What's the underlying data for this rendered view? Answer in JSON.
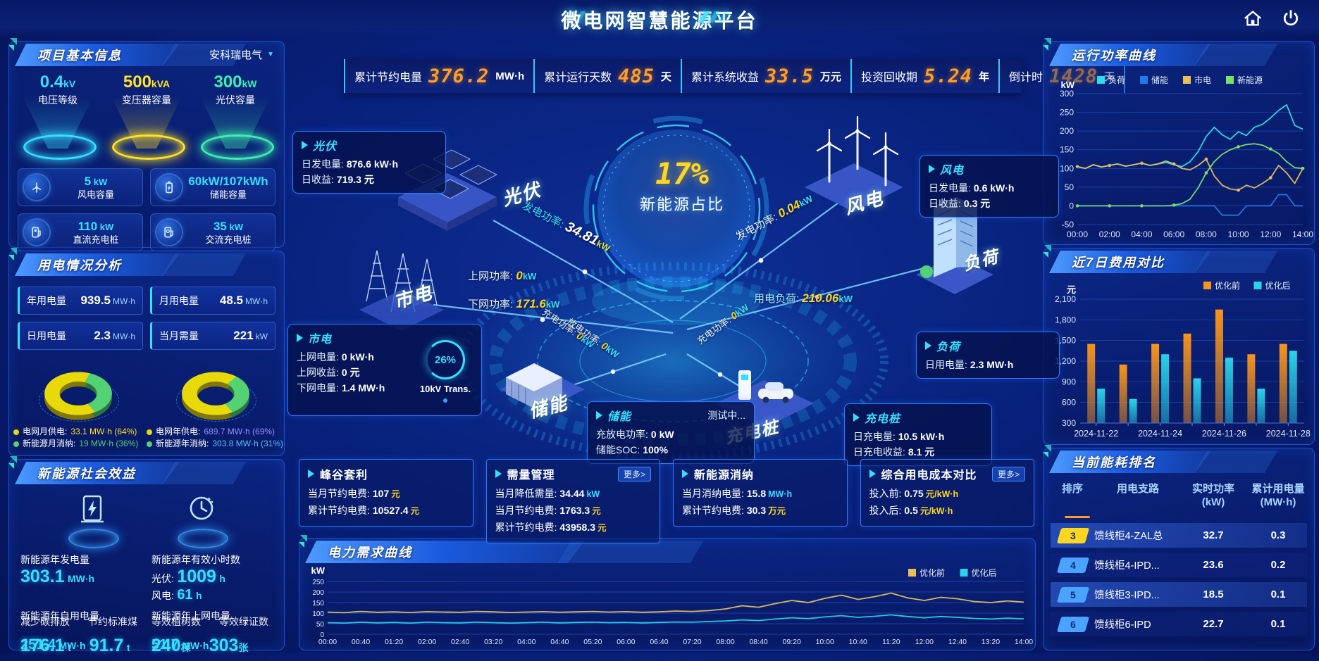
{
  "header": {
    "title": "微电网智慧能源平台"
  },
  "stats": [
    {
      "label": "累计节约电量",
      "value": "376.2",
      "unit": "MW·h"
    },
    {
      "label": "累计运行天数",
      "value": "485",
      "unit": "天"
    },
    {
      "label": "累计系统收益",
      "value": "33.5",
      "unit": "万元"
    },
    {
      "label": "投资回收期",
      "value": "5.24",
      "unit": "年"
    },
    {
      "label": "倒计时",
      "value": "1428",
      "unit": "天"
    }
  ],
  "project": {
    "title": "项目基本信息",
    "company": "安科瑞电气",
    "cones": [
      {
        "value": "0.4",
        "unit": "kV",
        "label": "电压等级",
        "color": "#35e0ff"
      },
      {
        "value": "500",
        "unit": "kVA",
        "label": "变压器容量",
        "color": "#ffe226"
      },
      {
        "value": "300",
        "unit": "kW",
        "label": "光伏容量",
        "color": "#3ef0b0"
      }
    ],
    "capacities": [
      {
        "value": "5",
        "unit": "kW",
        "label": "风电容量",
        "icon": "wind-turbine-icon"
      },
      {
        "value": "60kW/107kWh",
        "unit": "",
        "label": "储能容量",
        "icon": "battery-icon"
      },
      {
        "value": "110",
        "unit": "kW",
        "label": "直流充电桩",
        "icon": "dc-charger-icon"
      },
      {
        "value": "35",
        "unit": "kW",
        "label": "交流充电桩",
        "icon": "ac-charger-icon"
      }
    ]
  },
  "usage": {
    "title": "用电情况分析",
    "boxes": [
      {
        "label": "年用电量",
        "value": "939.5",
        "unit": "MW·h"
      },
      {
        "label": "月用电量",
        "value": "48.5",
        "unit": "MW·h"
      },
      {
        "label": "日用电量",
        "value": "2.3",
        "unit": "MW·h"
      },
      {
        "label": "当月需量",
        "value": "221",
        "unit": "kW"
      }
    ],
    "donuts": [
      {
        "entries": [
          {
            "label": "电网月供电:",
            "value": "33.1 MW·h (64%)",
            "pct": 64,
            "color": "#e8d90a",
            "value_color": "#ffe226"
          },
          {
            "label": "新能源月消纳:",
            "value": "19 MW·h (36%)",
            "pct": 36,
            "color": "#52d273",
            "value_color": "#52d273"
          }
        ]
      },
      {
        "entries": [
          {
            "label": "电网年供电:",
            "value": "689.7 MW·h (69%)",
            "pct": 69,
            "color": "#e8d90a",
            "value_color": "#9b8cff"
          },
          {
            "label": "新能源年消纳:",
            "value": "303.8 MW·h (31%)",
            "pct": 31,
            "color": "#52d273",
            "value_color": "#4fc3ff"
          }
        ]
      }
    ]
  },
  "social": {
    "title": "新能源社会效益",
    "cells": [
      {
        "label": "新能源年发电量",
        "value": "303.1",
        "unit": "MW·h"
      },
      {
        "label": "新能源年有效小时数",
        "line1_label": "光伏:",
        "line1_value": "1009",
        "line1_unit": "h",
        "line2_label": "风电:",
        "line2_value": "61",
        "line2_unit": "h"
      },
      {
        "label": "新能源年自用电量",
        "value": "251.4",
        "unit": "MW·h",
        "overlay_label": "减少碳排放",
        "overlay_value": "176.1",
        "overlay_unit": "t",
        "extra_label": "节约标准煤",
        "extra_value": "91.7",
        "extra_unit": "t"
      },
      {
        "label": "新能源年上网电量",
        "value": "51.7",
        "unit": "MW·h",
        "overlay_label": "等效植树数",
        "overlay_value": "240",
        "overlay_unit": "棵",
        "extra_label": "等效绿证数",
        "extra_value": "303",
        "extra_unit": "张"
      }
    ]
  },
  "topology": {
    "center_value": "17%",
    "center_label": "新能源占比",
    "transformer_pct": "26%",
    "transformer_label": "10kV Trans.",
    "nodes": [
      "光伏",
      "市电",
      "储能",
      "风电",
      "负荷",
      "充电桩"
    ],
    "flows": [
      {
        "label": "发电功率:",
        "value": "34.81",
        "unit": "kW"
      },
      {
        "label": "上网功率:",
        "value": "0",
        "unit": "kW"
      },
      {
        "label": "下网功率:",
        "value": "171.6",
        "unit": "kW"
      },
      {
        "label": "发电功率:",
        "value": "0.04",
        "unit": "kW"
      },
      {
        "label": "用电负荷:",
        "value": "210.06",
        "unit": "kW"
      },
      {
        "label": "充电功率:",
        "value": "0",
        "unit": "kW"
      },
      {
        "label": "放电功率:",
        "value": "0",
        "unit": "kW"
      },
      {
        "label": "充电功率:",
        "value": "0",
        "unit": "kW"
      }
    ],
    "info_boxes": [
      {
        "key": "pv",
        "title": "光伏",
        "rows": [
          {
            "label": "日发电量:",
            "value": "876.6 kW·h"
          },
          {
            "label": "日收益:",
            "value": "719.3 元"
          }
        ]
      },
      {
        "key": "wind",
        "title": "风电",
        "rows": [
          {
            "label": "日发电量:",
            "value": "0.6 kW·h"
          },
          {
            "label": "日收益:",
            "value": "0.3 元"
          }
        ]
      },
      {
        "key": "grid",
        "title": "市电",
        "rows": [
          {
            "label": "上网电量:",
            "value": "0 kW·h"
          },
          {
            "label": "上网收益:",
            "value": "0 元"
          },
          {
            "label": "下网电量:",
            "value": "1.4 MW·h"
          }
        ]
      },
      {
        "key": "storage",
        "title": "储能",
        "badge": "测试中...",
        "rows": [
          {
            "label": "充放电功率:",
            "value": "0 kW"
          },
          {
            "label": "储能SOC:",
            "value": "100%"
          }
        ]
      },
      {
        "key": "load",
        "title": "负荷",
        "rows": [
          {
            "label": "日用电量:",
            "value": "2.3 MW·h"
          }
        ]
      },
      {
        "key": "charger",
        "title": "充电桩",
        "rows": [
          {
            "label": "日充电量:",
            "value": "10.5 kW·h"
          },
          {
            "label": "日充电收益:",
            "value": "8.1 元"
          }
        ]
      }
    ]
  },
  "bottom_boxes": [
    {
      "title": "峰谷套利",
      "rows": [
        {
          "label": "当月节约电费:",
          "value": "107",
          "unit": "元"
        },
        {
          "label": "累计节约电费:",
          "value": "10527.4",
          "unit": "元"
        }
      ]
    },
    {
      "title": "需量管理",
      "more": "更多>",
      "rows": [
        {
          "label": "当月降低需量:",
          "value": "34.44",
          "unit": "kW"
        },
        {
          "label": "当月节约电费:",
          "value": "1763.3",
          "unit": "元"
        },
        {
          "label": "累计节约电费:",
          "value": "43958.3",
          "unit": "元"
        }
      ]
    },
    {
      "title": "新能源消纳",
      "rows": [
        {
          "label": "当月消纳电量:",
          "value": "15.8",
          "unit": "MW·h"
        },
        {
          "label": "累计节约电费:",
          "value": "30.3",
          "unit": "万元"
        }
      ]
    },
    {
      "title": "综合用电成本对比",
      "more": "更多>",
      "rows": [
        {
          "label": "投入前:",
          "value": "0.75",
          "unit": "元/kW·h"
        },
        {
          "label": "投入后:",
          "value": "0.5",
          "unit": "元/kW·h"
        }
      ]
    }
  ],
  "ranking": {
    "title": "当前能耗排名",
    "headers": [
      {
        "l1": "排序",
        "l2": ""
      },
      {
        "l1": "用电支路",
        "l2": ""
      },
      {
        "l1": "实时功率",
        "l2": "(kW)"
      },
      {
        "l1": "累计用电量",
        "l2": "(MW·h)"
      }
    ],
    "rows": [
      {
        "rank": "3",
        "name": "馈线柜4-ZAL总",
        "power": "32.7",
        "energy": "0.3",
        "badge_color": "#ffd61f"
      },
      {
        "rank": "4",
        "name": "馈线柜4-IPD...",
        "power": "23.6",
        "energy": "0.2",
        "badge_color": "#4aa3ff"
      },
      {
        "rank": "5",
        "name": "馈线柜3-IPD...",
        "power": "18.5",
        "energy": "0.1",
        "badge_color": "#4aa3ff"
      },
      {
        "rank": "6",
        "name": "馈线柜6-IPD",
        "power": "22.7",
        "energy": "0.1",
        "badge_color": "#4aa3ff"
      }
    ]
  },
  "chart_data": [
    {
      "id": "power_curve",
      "type": "line",
      "title": "运行功率曲线",
      "ylabel": "kW",
      "ylim": [
        -50,
        300
      ],
      "yticks": [
        300,
        250,
        200,
        150,
        100,
        50,
        0,
        -50
      ],
      "xticks": [
        "00:00",
        "02:00",
        "04:00",
        "06:00",
        "08:00",
        "10:00",
        "12:00",
        "14:00"
      ],
      "legend_position": "top",
      "grid": true,
      "series": [
        {
          "name": "负荷",
          "color": "#29e0e8",
          "values": [
            105,
            100,
            110,
            104,
            108,
            112,
            106,
            110,
            114,
            108,
            112,
            116,
            110,
            105,
            118,
            145,
            185,
            210,
            190,
            178,
            198,
            188,
            210,
            218,
            235,
            255,
            270,
            215,
            205
          ]
        },
        {
          "name": "储能",
          "color": "#1f7be8",
          "values": [
            0,
            0,
            0,
            0,
            0,
            0,
            0,
            0,
            0,
            0,
            0,
            0,
            0,
            0,
            0,
            0,
            0,
            0,
            -25,
            -25,
            -25,
            0,
            0,
            0,
            0,
            30,
            30,
            0,
            0
          ]
        },
        {
          "name": "市电",
          "color": "#e8c05a",
          "markers": 4,
          "values": [
            105,
            100,
            110,
            104,
            108,
            112,
            106,
            110,
            114,
            108,
            112,
            120,
            112,
            100,
            96,
            108,
            125,
            80,
            55,
            45,
            42,
            55,
            48,
            60,
            75,
            108,
            88,
            60,
            100
          ]
        },
        {
          "name": "新能源",
          "color": "#7be26a",
          "markers": 4,
          "values": [
            0,
            0,
            0,
            0,
            0,
            0,
            0,
            0,
            0,
            0,
            0,
            0,
            2,
            6,
            18,
            48,
            88,
            118,
            138,
            150,
            158,
            164,
            166,
            162,
            152,
            140,
            118,
            102,
            100
          ]
        }
      ]
    },
    {
      "id": "cost_compare",
      "type": "bar",
      "title": "近7日费用对比",
      "ylabel": "元",
      "ylim": [
        300,
        2100
      ],
      "yticks": [
        {
          "v": 2100,
          "label": "2,100"
        },
        {
          "v": 1800,
          "label": "1,800"
        },
        {
          "v": 1500,
          "label": "1,500"
        },
        {
          "v": 1200,
          "label": "1,200"
        },
        {
          "v": 900,
          "label": "900"
        },
        {
          "v": 600,
          "label": "600"
        },
        {
          "v": 300,
          "label": "300"
        }
      ],
      "categories": [
        "2024-11-22",
        "2024-11-23",
        "2024-11-24",
        "2024-11-25",
        "2024-11-26",
        "2024-11-27",
        "2024-11-28"
      ],
      "xticks_shown": [
        "2024-11-22",
        "2024-11-24",
        "2024-11-26",
        "2024-11-28"
      ],
      "legend_position": "top-right",
      "grid": true,
      "series": [
        {
          "name": "优化前",
          "color": "#f7941d",
          "values": [
            1450,
            1150,
            1450,
            1600,
            1950,
            1300,
            1450
          ]
        },
        {
          "name": "优化后",
          "color": "#29d3e8",
          "values": [
            800,
            650,
            1300,
            950,
            1250,
            800,
            1350
          ]
        }
      ]
    },
    {
      "id": "demand_curve",
      "type": "line",
      "title": "电力需求曲线",
      "ylabel": "kW",
      "ylim": [
        0,
        260
      ],
      "yticks": [
        250,
        200,
        150,
        100,
        50,
        0
      ],
      "xticks": [
        "00:00",
        "00:40",
        "01:20",
        "02:00",
        "02:40",
        "03:20",
        "04:00",
        "04:40",
        "05:20",
        "06:00",
        "06:40",
        "07:20",
        "08:00",
        "08:40",
        "09:20",
        "10:00",
        "10:40",
        "11:20",
        "12:00",
        "12:40",
        "13:20",
        "14:00"
      ],
      "legend_position": "top-right",
      "grid": true,
      "series": [
        {
          "name": "优化前",
          "color": "#e8c05a",
          "values": [
            105,
            102,
            108,
            104,
            106,
            103,
            107,
            105,
            104,
            108,
            106,
            103,
            105,
            107,
            104,
            106,
            108,
            105,
            107,
            104,
            106,
            110,
            108,
            112,
            120,
            135,
            128,
            145,
            160,
            150,
            170,
            185,
            165,
            178,
            195,
            172,
            160,
            175,
            168,
            155,
            150,
            158,
            152
          ]
        },
        {
          "name": "优化后",
          "color": "#29d3e8",
          "values": [
            55,
            53,
            57,
            54,
            56,
            53,
            57,
            55,
            54,
            57,
            55,
            53,
            55,
            57,
            54,
            56,
            57,
            55,
            56,
            54,
            56,
            58,
            57,
            60,
            63,
            68,
            65,
            72,
            78,
            74,
            82,
            88,
            80,
            85,
            92,
            84,
            78,
            84,
            80,
            75,
            72,
            76,
            73
          ]
        }
      ]
    }
  ]
}
